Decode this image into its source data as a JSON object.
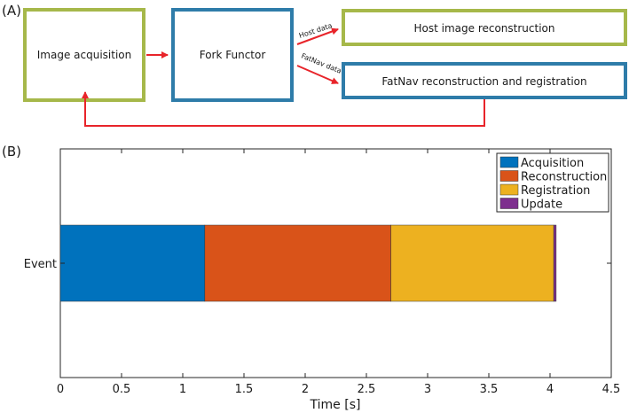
{
  "panel_a": {
    "label": "(A)",
    "boxes": {
      "acquisition": "Image acquisition",
      "fork": "Fork Functor",
      "host_recon": "Host image reconstruction",
      "fatnav_recon": "FatNav reconstruction and registration"
    },
    "arrows": {
      "host_data": "Host data",
      "fatnav_data": "FatNav data"
    },
    "colors": {
      "green_box": "#a6b84a",
      "blue_box": "#2e7ca9",
      "arrow": "#e8242a"
    }
  },
  "panel_b": {
    "label": "(B)"
  },
  "chart_data": {
    "type": "bar",
    "orientation": "horizontal",
    "stacked": true,
    "categories": [
      "Event"
    ],
    "series": [
      {
        "name": "Acquisition",
        "values": [
          1.18
        ],
        "color": "#0072bd"
      },
      {
        "name": "Reconstruction",
        "values": [
          1.52
        ],
        "color": "#d95319"
      },
      {
        "name": "Registration",
        "values": [
          1.33
        ],
        "color": "#edb120"
      },
      {
        "name": "Update",
        "values": [
          0.02
        ],
        "color": "#7e2f8e"
      }
    ],
    "xlabel": "Time [s]",
    "ylabel": "",
    "xlim": [
      0,
      4.5
    ],
    "xticks": [
      "0",
      "0.5",
      "1",
      "1.5",
      "2",
      "2.5",
      "3",
      "3.5",
      "4",
      "4.5"
    ],
    "grid": false,
    "legend": "top-right"
  }
}
